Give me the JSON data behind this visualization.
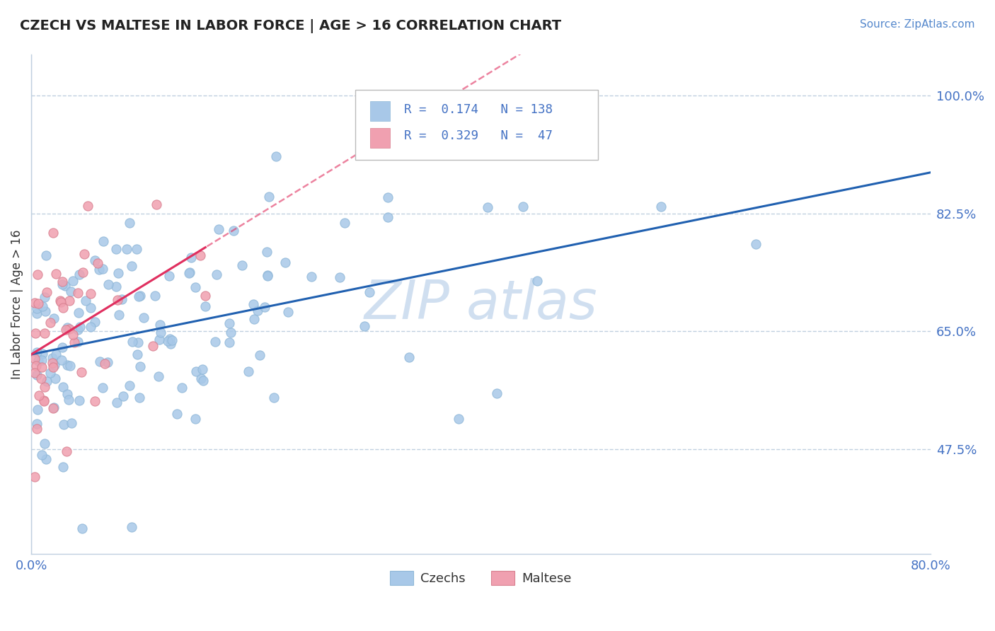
{
  "title": "CZECH VS MALTESE IN LABOR FORCE | AGE > 16 CORRELATION CHART",
  "source_text": "Source: ZipAtlas.com",
  "ylabel": "In Labor Force | Age > 16",
  "xlim": [
    0.0,
    0.8
  ],
  "ylim": [
    0.32,
    1.06
  ],
  "yticks": [
    0.475,
    0.65,
    0.825,
    1.0
  ],
  "R_czech": 0.174,
  "N_czech": 138,
  "R_maltese": 0.329,
  "N_maltese": 47,
  "czech_color": "#a8c8e8",
  "maltese_color": "#f0a0b0",
  "trendline_czech_color": "#2060b0",
  "trendline_maltese_color": "#e03060",
  "background_color": "#ffffff",
  "grid_color": "#c0d0e0",
  "watermark_color": "#d0dff0"
}
